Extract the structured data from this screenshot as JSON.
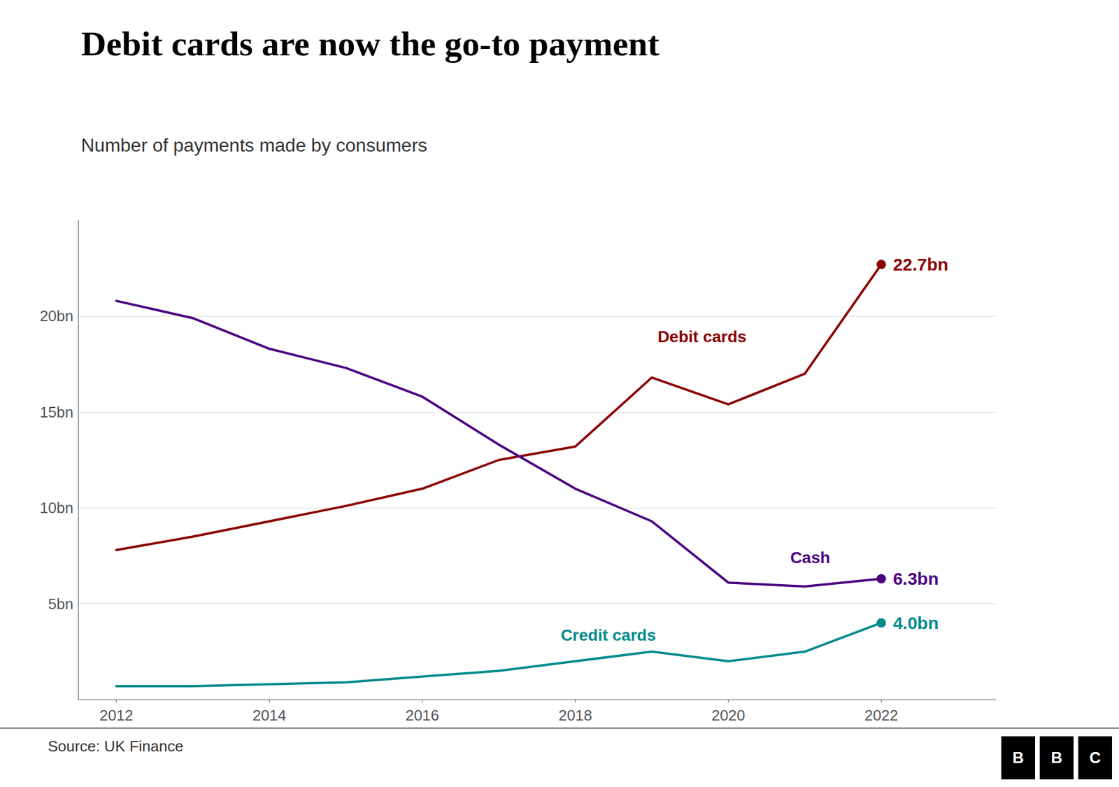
{
  "chart_data": {
    "type": "line",
    "title": "Debit cards are now the go-to payment",
    "subtitle": "Number of payments made by consumers",
    "source": "Source: UK Finance",
    "logo": "BBC",
    "x": [
      2012,
      2013,
      2014,
      2015,
      2016,
      2017,
      2018,
      2019,
      2020,
      2021,
      2022
    ],
    "series": [
      {
        "name": "Debit cards",
        "color": "#8B0000",
        "values": [
          7.8,
          8.5,
          9.3,
          10.1,
          11.0,
          12.5,
          13.2,
          16.8,
          15.4,
          17.0,
          22.7
        ],
        "value_labels": [
          null,
          null,
          null,
          null,
          null,
          null,
          null,
          null,
          null,
          null,
          "22.7bn"
        ]
      },
      {
        "name": "Cash",
        "color": "#4B0082",
        "values": [
          20.8,
          19.9,
          18.3,
          17.3,
          15.8,
          13.3,
          11.0,
          9.3,
          6.1,
          5.9,
          6.3
        ],
        "value_labels": [
          null,
          null,
          null,
          null,
          null,
          null,
          null,
          null,
          null,
          null,
          "6.3bn"
        ]
      },
      {
        "name": "Credit cards",
        "color": "#008B8B",
        "values": [
          0.7,
          0.7,
          0.8,
          0.9,
          1.2,
          1.5,
          2.0,
          2.5,
          2.0,
          2.5,
          4.0
        ],
        "value_labels": [
          null,
          null,
          null,
          null,
          null,
          null,
          null,
          null,
          null,
          null,
          "4.0bn"
        ]
      }
    ],
    "xlim": [
      2011.5,
      2023.5
    ],
    "xticks": [
      2012,
      2014,
      2016,
      2018,
      2020,
      2022
    ],
    "ylim": [
      0,
      25
    ],
    "yticks": [
      {
        "value": 5,
        "label": "5bn"
      },
      {
        "value": 10,
        "label": "10bn"
      },
      {
        "value": 15,
        "label": "15bn"
      },
      {
        "value": 20,
        "label": "20bn"
      }
    ],
    "grid": true
  }
}
